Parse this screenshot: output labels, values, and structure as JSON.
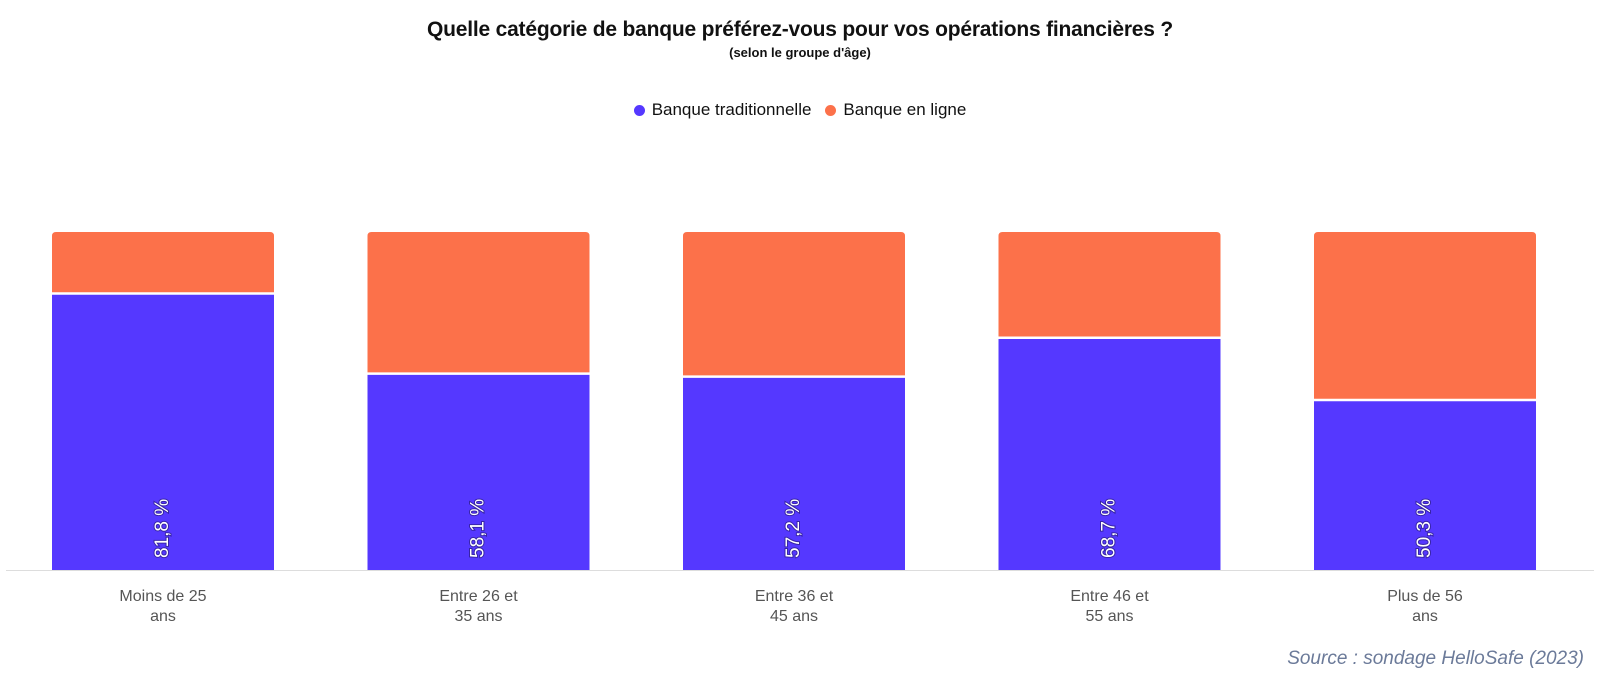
{
  "header": {
    "title": "Quelle catégorie de banque préférez-vous pour vos opérations financières ?",
    "subtitle": "(selon le groupe d'âge)"
  },
  "legend": {
    "items": [
      {
        "label": "Banque traditionnelle",
        "color": "#5538ff"
      },
      {
        "label": "Banque en ligne",
        "color": "#fc714a"
      }
    ]
  },
  "source": "Source : sondage HelloSafe (2023)",
  "chart_data": {
    "type": "bar",
    "stacked": true,
    "normalized": true,
    "categories": [
      [
        "Moins de 25",
        "ans"
      ],
      [
        "Entre 26 et",
        "35 ans"
      ],
      [
        "Entre 36 et",
        "45 ans"
      ],
      [
        "Entre 46 et",
        "55 ans"
      ],
      [
        "Plus de 56",
        "ans"
      ]
    ],
    "series": [
      {
        "name": "Banque traditionnelle",
        "color": "#5538ff",
        "values": [
          81.8,
          58.1,
          57.2,
          68.7,
          50.3
        ]
      },
      {
        "name": "Banque en ligne",
        "color": "#fc714a",
        "values": [
          18.2,
          41.9,
          42.8,
          31.3,
          49.7
        ]
      }
    ],
    "data_labels": [
      "81,8 %",
      "58,1 %",
      "57,2 %",
      "68,7 %",
      "50,3 %"
    ],
    "ylim": [
      0,
      100
    ],
    "grid": false,
    "legend_position": "top-center"
  }
}
